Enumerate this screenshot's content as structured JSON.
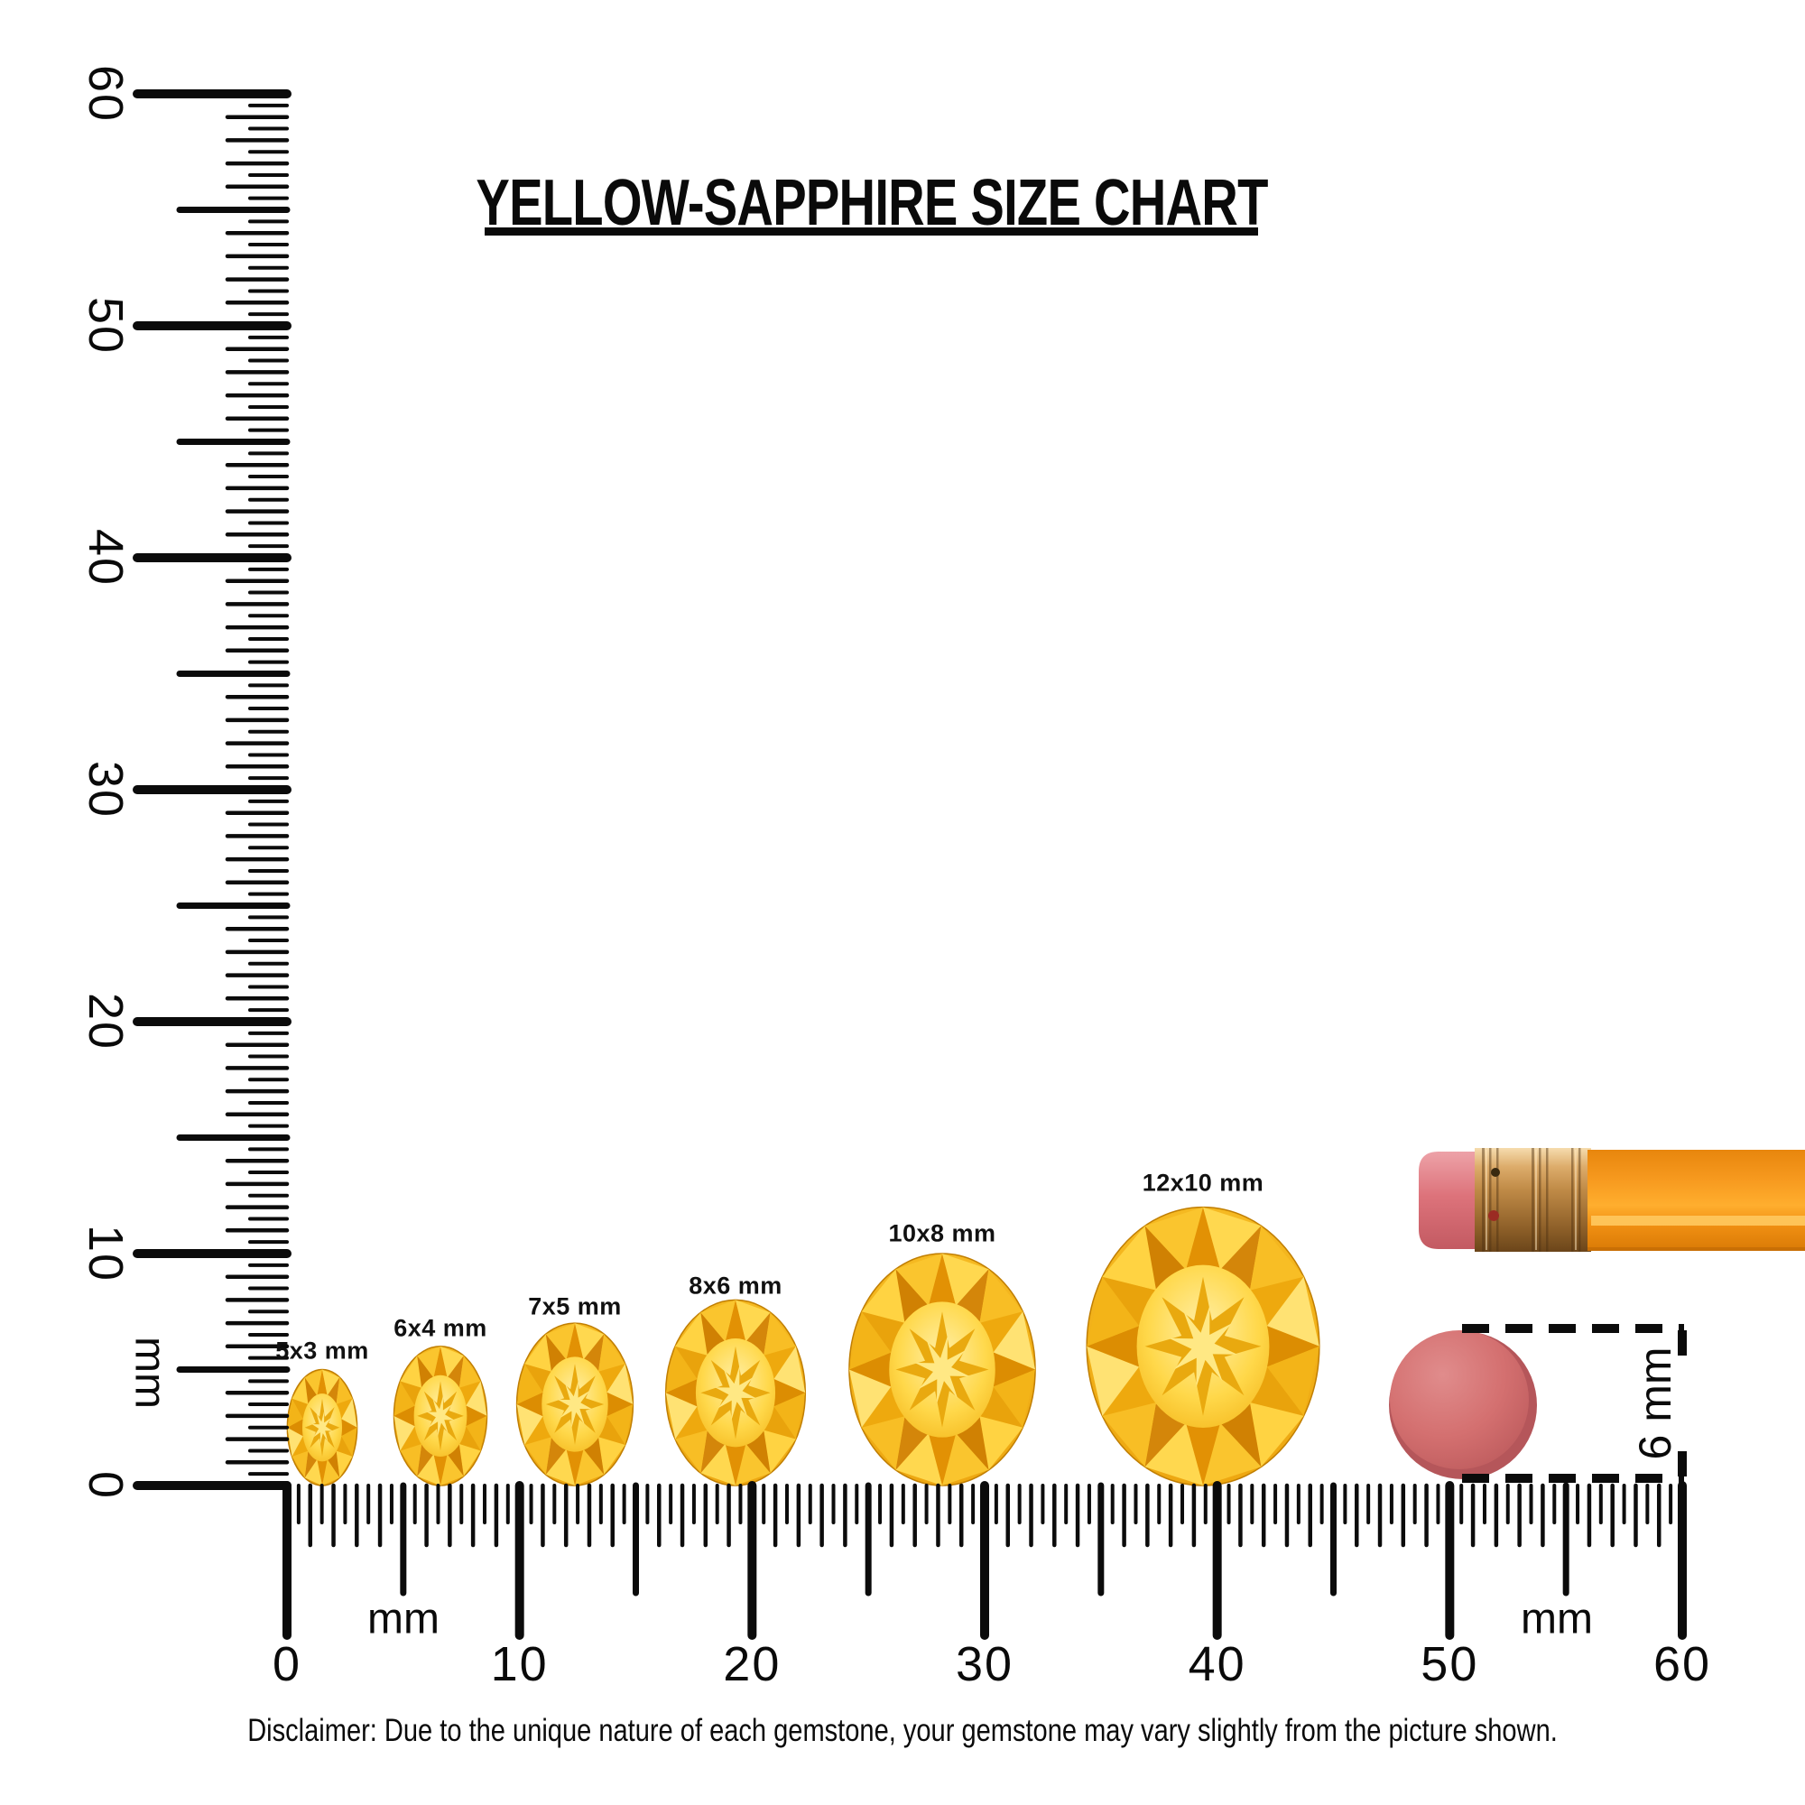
{
  "title": "YELLOW-SAPPHIRE SIZE CHART",
  "ruler": {
    "unit": "mm",
    "min": 0,
    "max": 60,
    "major_step": 10,
    "labels": [
      "0",
      "10",
      "20",
      "30",
      "40",
      "50",
      "60"
    ]
  },
  "stones": [
    {
      "label": "5x3 mm",
      "width_mm": 3,
      "height_mm": 5
    },
    {
      "label": "6x4 mm",
      "width_mm": 4,
      "height_mm": 6
    },
    {
      "label": "7x5 mm",
      "width_mm": 5,
      "height_mm": 7
    },
    {
      "label": "8x6 mm",
      "width_mm": 6,
      "height_mm": 8
    },
    {
      "label": "10x8 mm",
      "width_mm": 8,
      "height_mm": 10
    },
    {
      "label": "12x10 mm",
      "width_mm": 10,
      "height_mm": 12
    }
  ],
  "reference": {
    "eraser_label": "6 mm",
    "eraser_diameter_mm": 6
  },
  "disclaimer": "Disclaimer: Due to the unique nature of each gemstone, your gemstone may vary slightly from the picture shown.",
  "colors": {
    "ink": "#0a0a0a",
    "gem_light": "#FFD84F",
    "gem_mid": "#F6B51E",
    "gem_dark": "#DC8D02",
    "pencil_orange": "#F7941E",
    "ferrule_gold": "#C08B47",
    "eraser_pink": "#D16B6B"
  }
}
